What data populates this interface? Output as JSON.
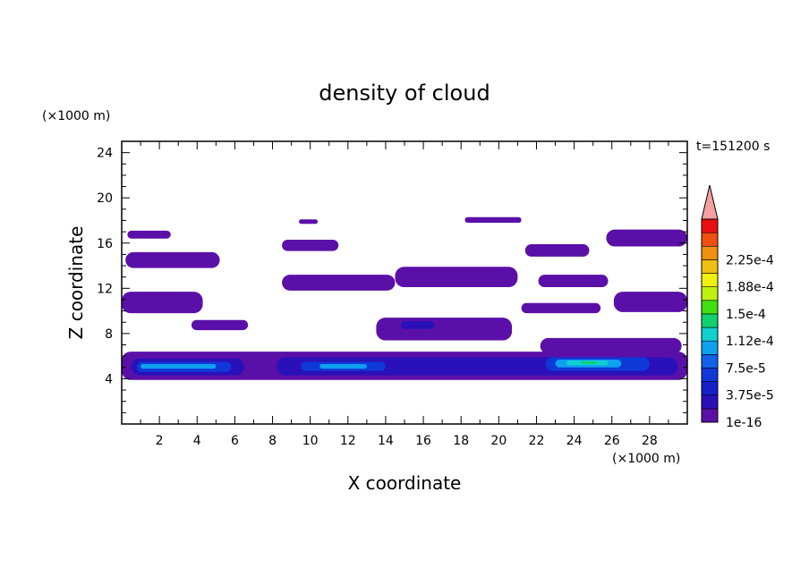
{
  "chart_data": {
    "type": "heatmap",
    "title": "density of cloud",
    "xlabel": "X coordinate",
    "ylabel": "Z coordinate",
    "x_unit": "(×1000 m)",
    "y_unit": "(×1000 m)",
    "time_label": "t=151200 s",
    "xlim": [
      0,
      30
    ],
    "ylim": [
      0,
      25
    ],
    "x_ticks": [
      2,
      4,
      6,
      8,
      10,
      12,
      14,
      16,
      18,
      20,
      22,
      24,
      26,
      28
    ],
    "y_ticks": [
      4,
      8,
      12,
      16,
      20,
      24
    ],
    "colorbar": {
      "levels": [
        1e-16,
        1.875e-05,
        3.75e-05,
        5.625e-05,
        7.5e-05,
        9.375e-05,
        0.0001125,
        0.00013125,
        0.00015,
        0.00016875,
        0.0001875,
        0.00020625,
        0.000225,
        0.00024375
      ],
      "colors": [
        "#5a10a8",
        "#2a10b8",
        "#1420c8",
        "#1038d8",
        "#1060e8",
        "#10a0f0",
        "#10d0d0",
        "#10d070",
        "#40e010",
        "#c0f010",
        "#f0f010",
        "#f0c010",
        "#f09010",
        "#f05010",
        "#e81010"
      ],
      "extend_color": "#f4a0a0",
      "tick_labels": [
        "1e-16",
        "3.75e-5",
        "7.5e-5",
        "1.12e-4",
        "1.5e-4",
        "1.88e-4",
        "2.25e-4"
      ],
      "tick_values": [
        1e-16,
        3.75e-05,
        7.5e-05,
        0.0001125,
        0.00015,
        0.0001875,
        0.000225
      ]
    },
    "regions": [
      {
        "level": 0,
        "x": [
          0,
          30
        ],
        "z": [
          3.9,
          6.4
        ]
      },
      {
        "level": 0,
        "x": [
          0.3,
          2.6
        ],
        "z": [
          16.4,
          17.1
        ]
      },
      {
        "level": 0,
        "x": [
          0.2,
          5.2
        ],
        "z": [
          13.8,
          15.2
        ]
      },
      {
        "level": 0,
        "x": [
          0,
          4.3
        ],
        "z": [
          9.8,
          11.7
        ]
      },
      {
        "level": 0,
        "x": [
          3.7,
          6.7
        ],
        "z": [
          8.3,
          9.2
        ]
      },
      {
        "level": 0,
        "x": [
          8.5,
          14.5
        ],
        "z": [
          11.8,
          13.2
        ]
      },
      {
        "level": 0,
        "x": [
          14.5,
          21
        ],
        "z": [
          12.1,
          13.9
        ]
      },
      {
        "level": 0,
        "x": [
          8.5,
          11.5
        ],
        "z": [
          15.3,
          16.3
        ]
      },
      {
        "level": 0,
        "x": [
          9.4,
          10.4
        ],
        "z": [
          17.7,
          18.1
        ]
      },
      {
        "level": 0,
        "x": [
          18.2,
          21.2
        ],
        "z": [
          17.8,
          18.3
        ]
      },
      {
        "level": 0,
        "x": [
          21.4,
          24.8
        ],
        "z": [
          14.8,
          15.9
        ]
      },
      {
        "level": 0,
        "x": [
          25.7,
          30
        ],
        "z": [
          15.7,
          17.2
        ]
      },
      {
        "level": 0,
        "x": [
          22.1,
          25.8
        ],
        "z": [
          12.1,
          13.2
        ]
      },
      {
        "level": 0,
        "x": [
          26.1,
          30
        ],
        "z": [
          9.9,
          11.7
        ]
      },
      {
        "level": 0,
        "x": [
          21.2,
          25.4
        ],
        "z": [
          9.8,
          10.7
        ]
      },
      {
        "level": 0,
        "x": [
          13.5,
          20.7
        ],
        "z": [
          7.4,
          9.4
        ]
      },
      {
        "level": 0,
        "x": [
          22.2,
          29.7
        ],
        "z": [
          6.2,
          7.6
        ]
      },
      {
        "level": 1,
        "x": [
          14.8,
          16.6
        ],
        "z": [
          8.4,
          9.1
        ]
      },
      {
        "level": 1,
        "x": [
          0.5,
          6.5
        ],
        "z": [
          4.3,
          5.8
        ]
      },
      {
        "level": 1,
        "x": [
          8.2,
          29.5
        ],
        "z": [
          4.3,
          5.9
        ]
      },
      {
        "level": 3,
        "x": [
          0.8,
          5.8
        ],
        "z": [
          4.6,
          5.5
        ]
      },
      {
        "level": 3,
        "x": [
          9.5,
          14
        ],
        "z": [
          4.7,
          5.5
        ]
      },
      {
        "level": 3,
        "x": [
          22.5,
          28
        ],
        "z": [
          4.7,
          5.9
        ]
      },
      {
        "level": 5,
        "x": [
          1,
          5
        ],
        "z": [
          4.9,
          5.3
        ]
      },
      {
        "level": 5,
        "x": [
          10.5,
          13
        ],
        "z": [
          4.9,
          5.3
        ]
      },
      {
        "level": 5,
        "x": [
          23,
          26.5
        ],
        "z": [
          5.0,
          5.7
        ]
      },
      {
        "level": 6,
        "x": [
          23.6,
          25.8
        ],
        "z": [
          5.2,
          5.6
        ]
      },
      {
        "level": 7,
        "x": [
          24.4,
          25.2
        ],
        "z": [
          5.3,
          5.55
        ]
      }
    ]
  }
}
